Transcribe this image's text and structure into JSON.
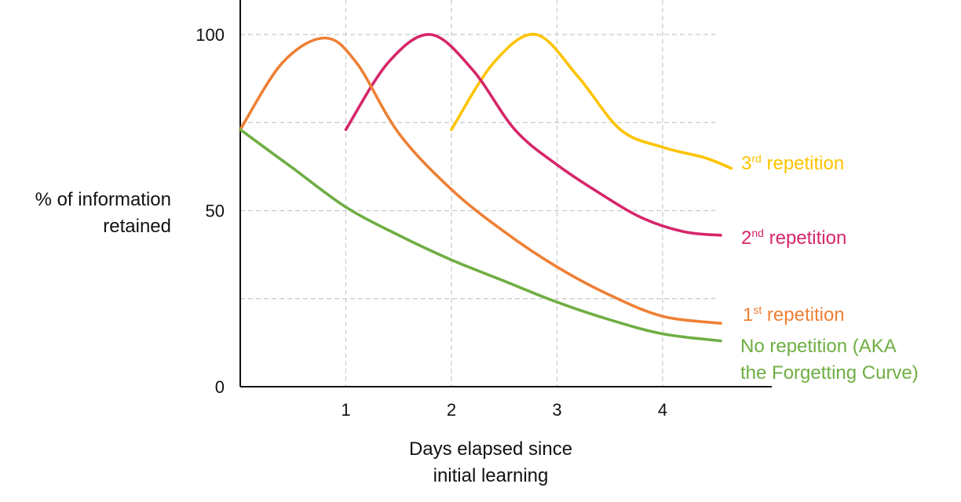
{
  "chart_data": {
    "type": "line",
    "xlabel_line1": "Days elapsed since",
    "xlabel_line2": "initial learning",
    "ylabel_line1": "% of information",
    "ylabel_line2": "retained",
    "x_ticks": [
      "1",
      "2",
      "3",
      "4"
    ],
    "y_ticks": [
      "0",
      "50",
      "100"
    ],
    "xlim": [
      0,
      5
    ],
    "ylim": [
      0,
      110
    ],
    "grid": true,
    "series": [
      {
        "ordinal": "3",
        "suffix": "rd",
        "rest": " repetition",
        "color": "#FDC300",
        "x": [
          2.0,
          2.4,
          2.8,
          3.2,
          3.6,
          4.0,
          4.4,
          4.65
        ],
        "y": [
          73,
          92,
          100,
          88,
          73,
          68,
          65,
          62
        ]
      },
      {
        "ordinal": "2",
        "suffix": "nd",
        "rest": " repetition",
        "color": "#D6266A",
        "x": [
          1.0,
          1.4,
          1.8,
          2.2,
          2.6,
          3.0,
          3.4,
          3.8,
          4.2,
          4.55
        ],
        "y": [
          73,
          92,
          100,
          90,
          73,
          63,
          55,
          48,
          44,
          43
        ]
      },
      {
        "ordinal": "1",
        "suffix": "st",
        "rest": " repetition",
        "color": "#EE8035",
        "x": [
          0.0,
          0.4,
          0.8,
          1.1,
          1.5,
          2.0,
          2.5,
          3.0,
          3.5,
          4.0,
          4.55
        ],
        "y": [
          73,
          92,
          99,
          92,
          72,
          56,
          44,
          34,
          26,
          20,
          18
        ]
      },
      {
        "label_line1": "No repetition (AKA",
        "label_line2": "the Forgetting Curve)",
        "color": "#6FAE43",
        "x": [
          0.0,
          0.5,
          1.0,
          1.5,
          2.0,
          2.5,
          3.0,
          3.5,
          4.0,
          4.55
        ],
        "y": [
          73,
          62,
          51,
          43,
          36,
          30,
          24,
          19,
          15,
          13
        ]
      }
    ]
  }
}
